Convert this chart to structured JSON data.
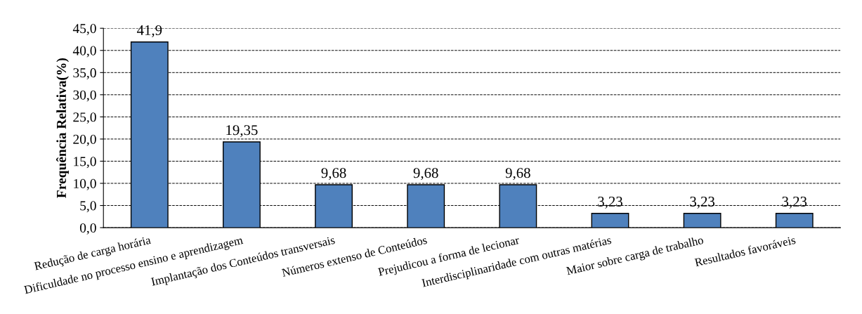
{
  "chart_data": {
    "type": "bar",
    "ylabel": "Frequência Relativa(%)",
    "categories": [
      "Redução de carga horária",
      "Dificuldade no processo ensino e aprendizagem",
      "Implantação dos Conteúdos transversais",
      "Números extenso de Conteúdos",
      "Prejudicou a forma de lecionar",
      "Interdisciplinaridade com outras matérias",
      "Maior sobre carga de trabalho",
      "Resultados favoráveis"
    ],
    "values": [
      41.9,
      19.35,
      9.68,
      9.68,
      9.68,
      3.23,
      3.23,
      3.23
    ],
    "value_labels": [
      "41,9",
      "19,35",
      "9,68",
      "9,68",
      "9,68",
      "3,23",
      "3,23",
      "3,23"
    ],
    "color": "#4f81bd",
    "ylim": [
      0,
      45
    ],
    "yticks": [
      {
        "value": 0,
        "label": "0,0"
      },
      {
        "value": 5,
        "label": "5,0"
      },
      {
        "value": 10,
        "label": "10,0"
      },
      {
        "value": 15,
        "label": "15,0"
      },
      {
        "value": 20,
        "label": "20,0"
      },
      {
        "value": 25,
        "label": "25,0"
      },
      {
        "value": 30,
        "label": "30,0"
      },
      {
        "value": 35,
        "label": "35,0"
      },
      {
        "value": 40,
        "label": "40,0"
      },
      {
        "value": 45,
        "label": "45,0"
      }
    ],
    "grid": "y"
  }
}
